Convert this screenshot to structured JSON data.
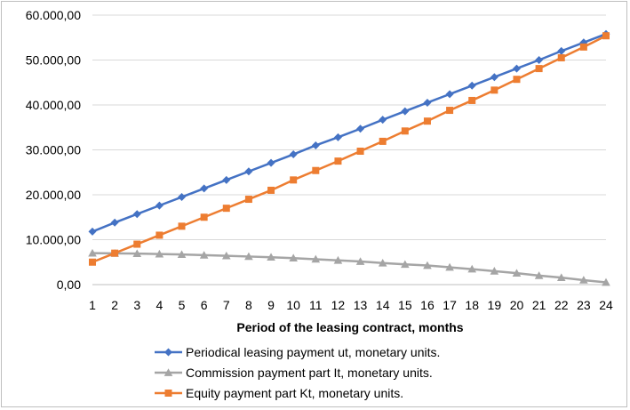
{
  "chart_data": {
    "type": "line",
    "title": "",
    "xlabel": "Period of the leasing contract, months",
    "ylabel": "",
    "x": [
      1,
      2,
      3,
      4,
      5,
      6,
      7,
      8,
      9,
      10,
      11,
      12,
      13,
      14,
      15,
      16,
      17,
      18,
      19,
      20,
      21,
      22,
      23,
      24
    ],
    "ylim": [
      0,
      60000
    ],
    "yticks": [
      "0,00",
      "10.000,00",
      "20.000,00",
      "30.000,00",
      "40.000,00",
      "50.000,00",
      "60.000,00"
    ],
    "grid": true,
    "legend_position": "bottom",
    "series": [
      {
        "name": "Periodical leasing payment ut, monetary units.",
        "color": "#4472C4",
        "marker": "diamond",
        "values": [
          11800,
          13800,
          15700,
          17600,
          19500,
          21400,
          23300,
          25200,
          27100,
          29000,
          31000,
          32800,
          34700,
          36700,
          38600,
          40500,
          42400,
          44300,
          46200,
          48100,
          50000,
          52000,
          53900,
          55800
        ]
      },
      {
        "name": "Commission payment part It, monetary units.",
        "color": "#A5A5A5",
        "marker": "triangle",
        "values": [
          7000,
          6950,
          6900,
          6800,
          6700,
          6550,
          6400,
          6250,
          6100,
          5900,
          5650,
          5400,
          5150,
          4800,
          4500,
          4250,
          3850,
          3450,
          3000,
          2550,
          2000,
          1550,
          1000,
          500
        ]
      },
      {
        "name": "Equity payment part Kt, monetary units.",
        "color": "#ED7D31",
        "marker": "square",
        "values": [
          5000,
          7000,
          9000,
          11000,
          13000,
          15000,
          17000,
          19000,
          21000,
          23300,
          25400,
          27500,
          29700,
          31900,
          34200,
          36400,
          38800,
          41000,
          43300,
          45700,
          48100,
          50500,
          52900,
          55400
        ]
      }
    ]
  }
}
